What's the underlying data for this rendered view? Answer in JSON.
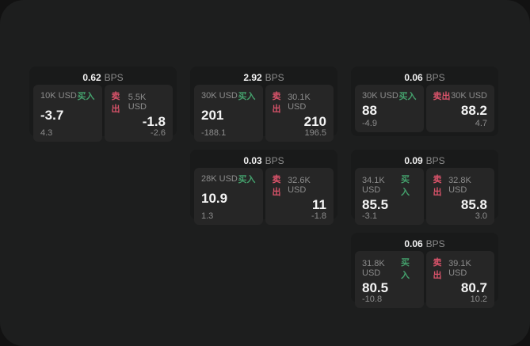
{
  "colors": {
    "outer_bg": "#121212",
    "window_bg": "#1d1e1e",
    "card_bg": "#191a1a",
    "panel_bg": "#262626",
    "buy": "#44a06c",
    "sell": "#d9536a"
  },
  "labels": {
    "bps_unit": "BPS",
    "buy": "买入",
    "sell": "卖出"
  },
  "cards": [
    {
      "bps": "0.62",
      "buy": {
        "size": "10K USD",
        "value": "-3.7",
        "sub": "4.3"
      },
      "sell": {
        "size": "5.5K USD",
        "value": "-1.8",
        "sub": "-2.6"
      }
    },
    {
      "bps": "2.92",
      "buy": {
        "size": "30K USD",
        "value": "201",
        "sub": "-188.1"
      },
      "sell": {
        "size": "30.1K USD",
        "value": "210",
        "sub": "196.5"
      }
    },
    {
      "bps": "0.06",
      "buy": {
        "size": "30K USD",
        "value": "88",
        "sub": "-4.9"
      },
      "sell": {
        "size": "30K USD",
        "value": "88.2",
        "sub": "4.7"
      }
    },
    {
      "bps": "0.03",
      "buy": {
        "size": "28K USD",
        "value": "10.9",
        "sub": "1.3"
      },
      "sell": {
        "size": "32.6K USD",
        "value": "11",
        "sub": "-1.8"
      }
    },
    {
      "bps": "0.09",
      "buy": {
        "size": "34.1K USD",
        "value": "85.5",
        "sub": "-3.1"
      },
      "sell": {
        "size": "32.8K USD",
        "value": "85.8",
        "sub": "3.0"
      }
    },
    {
      "bps": "0.06",
      "buy": {
        "size": "31.8K USD",
        "value": "80.5",
        "sub": "-10.8"
      },
      "sell": {
        "size": "39.1K USD",
        "value": "80.7",
        "sub": "10.2"
      }
    }
  ]
}
